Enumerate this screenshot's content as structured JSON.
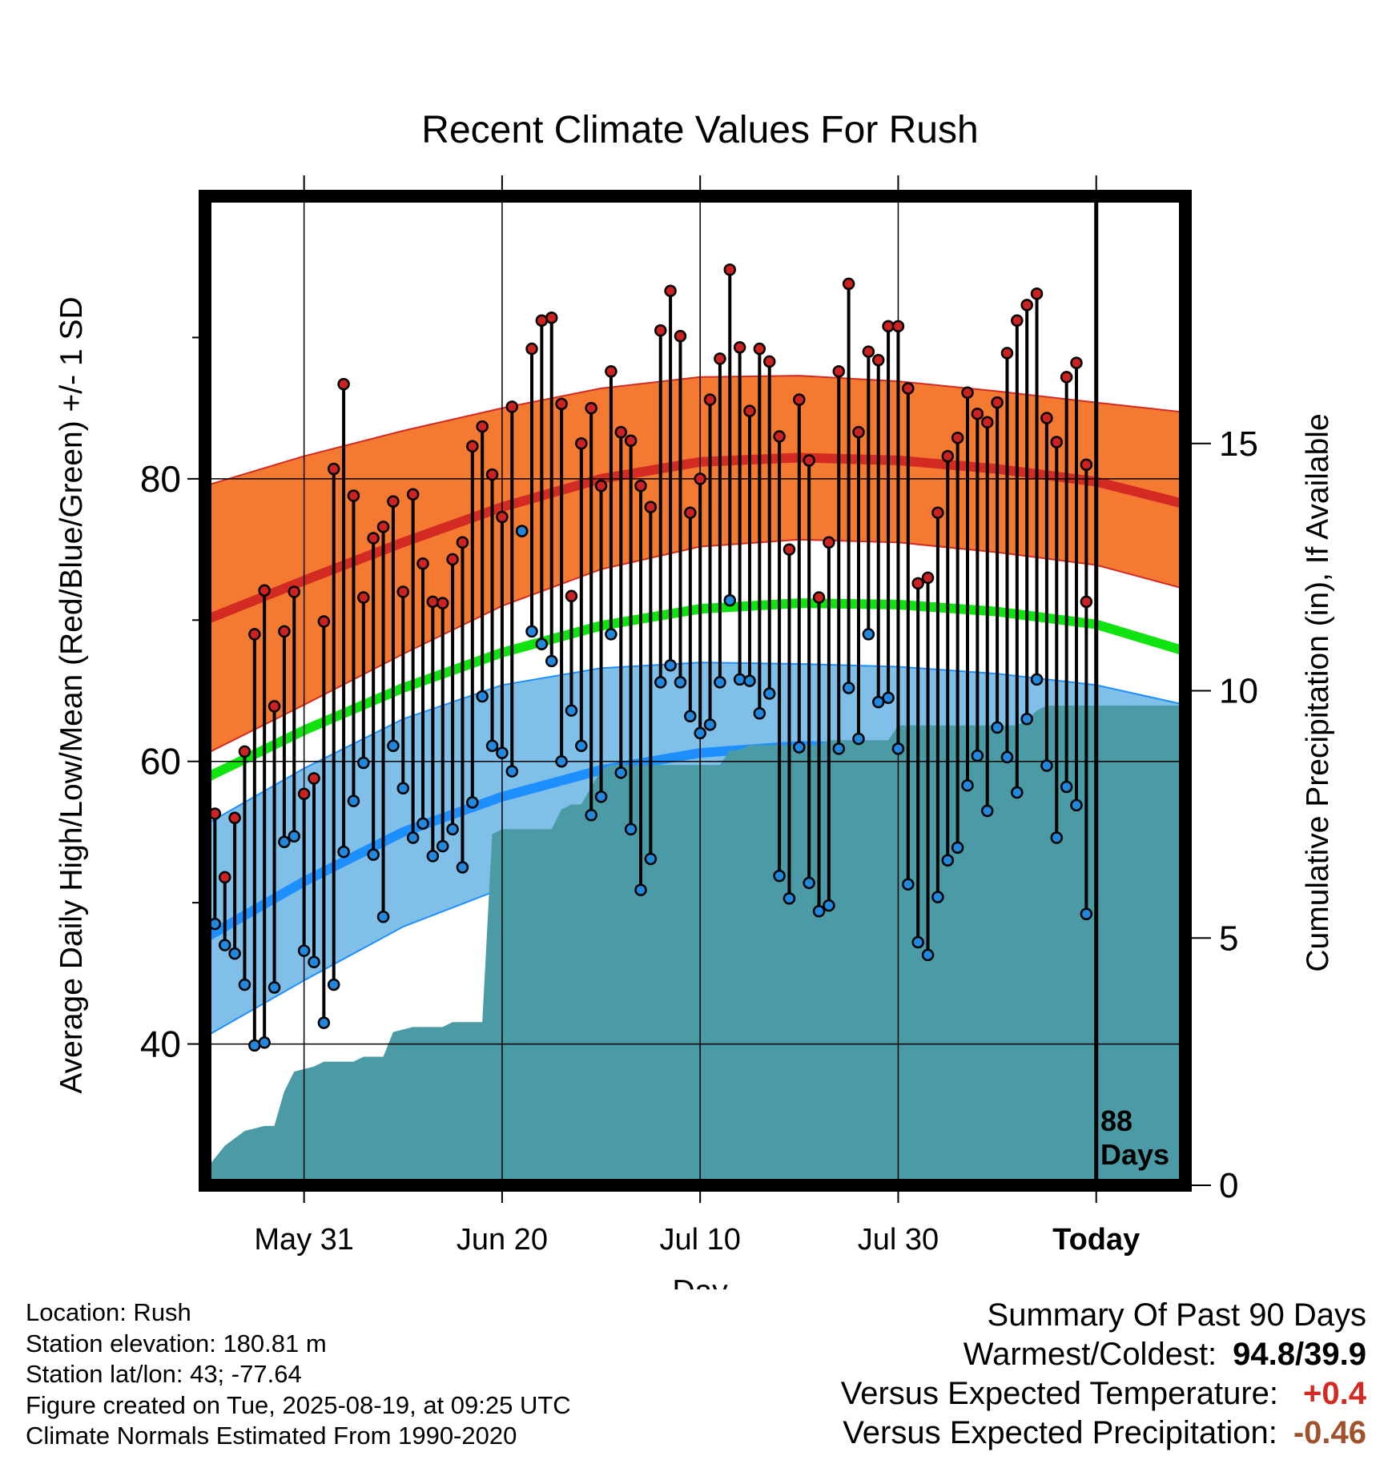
{
  "title": "Recent Climate Values For Rush",
  "axes": {
    "ylabel": "Average Daily High/Low/Mean (Red/Blue/Green) +/- 1 SD",
    "y2label": "Cumulative Precipitation (in), If Available",
    "xlabel": "Day",
    "x_ticks": [
      "May 31",
      "Jun 20",
      "Jul 10",
      "Jul 30",
      "Today"
    ],
    "y_ticks": [
      "40",
      "60",
      "80"
    ],
    "y2_ticks": [
      "0",
      "5",
      "10",
      "15"
    ]
  },
  "today_label": [
    "88",
    "Days"
  ],
  "info": {
    "location": "Location: Rush",
    "elevation": "Station elevation: 180.81 m",
    "latlon": "Station lat/lon: 43; -77.64",
    "created": "Figure created on Tue, 2025-08-19, at 09:25 UTC",
    "normals": "Climate Normals Estimated From 1990-2020"
  },
  "summary": {
    "heading": "Summary Of Past 90 Days",
    "warm_label": "Warmest/Coldest:",
    "warm_value": "94.8/39.9",
    "temp_label": "Versus Expected Temperature:",
    "temp_value": "+0.4",
    "precip_label": "Versus Expected Precipitation:",
    "precip_value": "-0.46"
  },
  "colors": {
    "high_band": "#f37a30",
    "high_line": "#d42a24",
    "mean_line": "#11e311",
    "low_band": "#7fbfe8",
    "low_line": "#1e8fff",
    "precip": "#4a9ba5",
    "high_dot": "#cc2222",
    "low_dot": "#2288dd",
    "temp_value": "#d42a24",
    "precip_value": "#a0522d"
  },
  "chart_data": {
    "type": "line",
    "x_unit": "day offset relative to today",
    "xlim": [
      -90,
      9
    ],
    "ylim": [
      30,
      100
    ],
    "y2lim": [
      0,
      20
    ],
    "x_tick_days": [
      -80,
      -60,
      -40,
      -20,
      0
    ],
    "normals": {
      "x": [
        -90,
        -80,
        -70,
        -60,
        -50,
        -40,
        -30,
        -20,
        -10,
        0,
        9
      ],
      "high_mean": [
        70,
        72.8,
        75.5,
        78,
        80,
        81.2,
        81.5,
        81.3,
        80.7,
        79.8,
        78.2
      ],
      "high_upper": [
        79.5,
        81.6,
        83.4,
        85,
        86.4,
        87.2,
        87.3,
        86.9,
        86.2,
        85.4,
        84.7
      ],
      "high_lower": [
        60.5,
        64,
        67.6,
        71,
        73.6,
        75.2,
        75.7,
        75.5,
        74.8,
        73.9,
        72.2
      ],
      "mean": [
        58.8,
        62.2,
        65.2,
        67.7,
        69.6,
        70.8,
        71.2,
        71.1,
        70.6,
        69.7,
        67.8
      ],
      "low_mean": [
        47.5,
        51.5,
        55,
        57.5,
        59.4,
        60.6,
        61.1,
        61,
        60.4,
        59.5,
        57.2
      ],
      "low_upper": [
        55.5,
        59.5,
        63,
        65.4,
        66.6,
        67,
        66.9,
        66.7,
        66.2,
        65.4,
        64
      ],
      "low_lower": [
        40.5,
        44.5,
        48.3,
        51,
        53.3,
        54.7,
        55.3,
        55.2,
        54.3,
        52.8,
        51
      ]
    },
    "daily": {
      "x": [
        -90,
        -89,
        -88,
        -87,
        -86,
        -85,
        -84,
        -83,
        -82,
        -81,
        -80,
        -79,
        -78,
        -77,
        -76,
        -75,
        -74,
        -73,
        -72,
        -71,
        -70,
        -69,
        -68,
        -67,
        -66,
        -65,
        -64,
        -63,
        -62,
        -61,
        -60,
        -59,
        -58,
        -57,
        -56,
        -55,
        -54,
        -53,
        -52,
        -51,
        -50,
        -49,
        -48,
        -47,
        -46,
        -45,
        -44,
        -43,
        -42,
        -41,
        -40,
        -39,
        -38,
        -37,
        -36,
        -35,
        -34,
        -33,
        -32,
        -31,
        -30,
        -29,
        -28,
        -27,
        -26,
        -25,
        -24,
        -23,
        -22,
        -21,
        -20,
        -19,
        -18,
        -17,
        -16,
        -15,
        -14,
        -13,
        -12,
        -11,
        -10,
        -9,
        -8,
        -7,
        -6,
        -5,
        -4,
        -3,
        -2,
        -1
      ],
      "high": [
        52.5,
        56.3,
        51.8,
        56,
        60.7,
        69,
        72.1,
        63.9,
        69.2,
        72,
        57.7,
        58.8,
        69.9,
        80.7,
        86.7,
        78.8,
        71.6,
        75.8,
        76.6,
        78.4,
        72,
        78.9,
        74,
        71.3,
        71.2,
        74.3,
        75.5,
        82.3,
        83.7,
        80.3,
        77.3,
        85.1,
        76.3,
        89.2,
        91.2,
        91.4,
        85.3,
        71.7,
        82.5,
        85,
        79.5,
        87.6,
        83.3,
        82.7,
        79.5,
        78,
        90.5,
        93.3,
        90.1,
        77.6,
        80,
        85.6,
        88.5,
        94.8,
        89.3,
        84.8,
        89.2,
        88.3,
        83,
        75,
        85.6,
        81.3,
        71.6,
        75.5,
        87.6,
        93.8,
        83.3,
        89,
        88.4,
        90.8,
        90.8,
        86.4,
        72.6,
        73,
        77.6,
        81.6,
        82.9,
        86.1,
        84.6,
        84,
        85.4,
        88.9,
        91.2,
        92.3,
        93.1,
        84.3,
        82.6,
        87.2,
        88.2,
        81
      ],
      "low": [
        41.6,
        48.5,
        47,
        46.4,
        44.2,
        39.9,
        40.1,
        44,
        54.3,
        54.7,
        46.6,
        45.8,
        41.5,
        44.2,
        53.6,
        57.2,
        59.9,
        53.4,
        49,
        61.1,
        58.1,
        54.6,
        55.6,
        53.3,
        54,
        55.2,
        52.5,
        57.1,
        64.6,
        61.1,
        60.6,
        59.3,
        76.3,
        69.2,
        68.3,
        67.1,
        60,
        63.6,
        61.1,
        56.2,
        57.5,
        69,
        59.2,
        55.2,
        50.9,
        53.1,
        65.6,
        66.8,
        65.6,
        63.2,
        62,
        62.6,
        65.6,
        71.4,
        65.8,
        65.7,
        63.4,
        64.8,
        51.9,
        50.3,
        61,
        51.4,
        49.4,
        49.8,
        60.9,
        65.2,
        61.6,
        69,
        64.2,
        64.5,
        60.9,
        51.3,
        47.2,
        46.3,
        50.4,
        53,
        53.9,
        58.3,
        60.4,
        56.5,
        62.4,
        60.3,
        57.8,
        63,
        65.8,
        59.7,
        54.6,
        58.2,
        56.9,
        49.2
      ]
    },
    "today_high": 71.3,
    "precip": {
      "x": [
        -90,
        -88,
        -86,
        -84,
        -83,
        -82,
        -81,
        -79,
        -78,
        -75,
        -74,
        -72,
        -71,
        -69,
        -66,
        -65,
        -63,
        -62,
        -61,
        -60,
        -57,
        -55,
        -54,
        -53,
        -52,
        -50,
        -49,
        -48,
        -46,
        -44,
        -42,
        -40,
        -38,
        -37,
        -36,
        -35,
        -33,
        -31,
        -29,
        -28,
        -27,
        -26,
        -24,
        -22,
        -21,
        -20,
        -19,
        -18,
        -16,
        -14,
        -12,
        -10,
        -8,
        -7,
        -6,
        -5,
        -3,
        -1,
        0,
        9
      ],
      "y": [
        0.3,
        0.8,
        1.1,
        1.2,
        1.2,
        1.9,
        2.3,
        2.4,
        2.5,
        2.5,
        2.6,
        2.6,
        3.1,
        3.2,
        3.2,
        3.3,
        3.3,
        3.3,
        7.1,
        7.2,
        7.2,
        7.2,
        7.6,
        7.7,
        7.7,
        8.4,
        8.5,
        8.5,
        8.5,
        8.5,
        8.5,
        8.5,
        8.5,
        8.8,
        8.8,
        8.9,
        8.9,
        8.9,
        8.9,
        8.9,
        9,
        9,
        9,
        9,
        9,
        9.3,
        9.3,
        9.3,
        9.3,
        9.3,
        9.3,
        9.3,
        9.3,
        9.4,
        9.6,
        9.7,
        9.7,
        9.7,
        9.7,
        9.7
      ]
    }
  }
}
